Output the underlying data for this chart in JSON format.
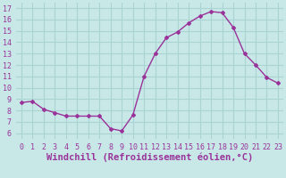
{
  "x": [
    0,
    1,
    2,
    3,
    4,
    5,
    6,
    7,
    8,
    9,
    10,
    11,
    12,
    13,
    14,
    15,
    16,
    17,
    18,
    19,
    20,
    21,
    22,
    23
  ],
  "y": [
    8.7,
    8.8,
    8.1,
    7.8,
    7.5,
    7.5,
    7.5,
    7.5,
    6.4,
    6.2,
    7.6,
    11.0,
    13.0,
    14.4,
    14.9,
    15.7,
    16.3,
    16.7,
    16.6,
    15.3,
    13.0,
    12.0,
    10.9,
    10.4
  ],
  "line_color": "#993399",
  "marker": "D",
  "marker_size": 2,
  "bg_color": "#c8e8e8",
  "grid_color": "#aad4d4",
  "xlabel": "Windchill (Refroidissement éolien,°C)",
  "xlabel_color": "#993399",
  "tick_color": "#993399",
  "ylim": [
    5.5,
    17.5
  ],
  "xlim": [
    -0.5,
    23.5
  ],
  "yticks": [
    6,
    7,
    8,
    9,
    10,
    11,
    12,
    13,
    14,
    15,
    16,
    17
  ],
  "xticks": [
    0,
    1,
    2,
    3,
    4,
    5,
    6,
    7,
    8,
    9,
    10,
    11,
    12,
    13,
    14,
    15,
    16,
    17,
    18,
    19,
    20,
    21,
    22,
    23
  ],
  "tick_fontsize": 6,
  "xlabel_fontsize": 7.5,
  "bottom_bar_color": "#993399"
}
